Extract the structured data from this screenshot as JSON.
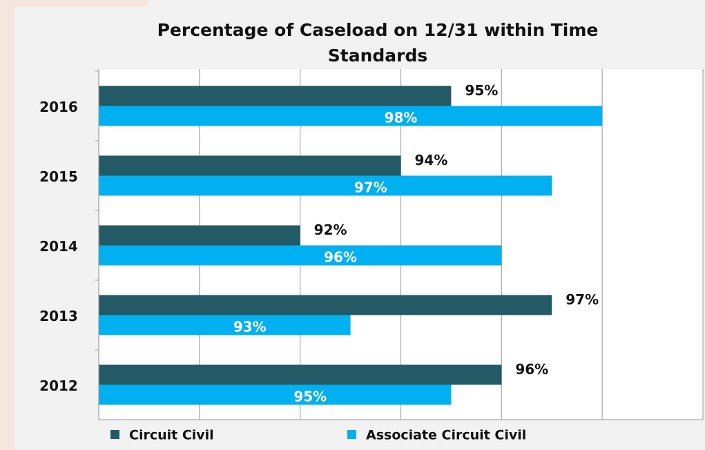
{
  "chart_data": {
    "type": "bar",
    "orientation": "horizontal",
    "title": "Percentage of Caseload on 12/31 within Time Standards",
    "categories": [
      "2016",
      "2015",
      "2014",
      "2013",
      "2012"
    ],
    "series": [
      {
        "name": "Circuit Civil",
        "color": "#245a66",
        "values": [
          95,
          94,
          92,
          97,
          96
        ],
        "value_labels": [
          "95%",
          "94%",
          "92%",
          "97%",
          "96%"
        ]
      },
      {
        "name": "Associate Circuit Civil",
        "color": "#00b0f0",
        "values": [
          98,
          97,
          96,
          93,
          95
        ],
        "value_labels": [
          "98%",
          "97%",
          "96%",
          "93%",
          "95%"
        ]
      }
    ],
    "xlim": [
      88,
      100
    ],
    "xticks": [
      88,
      90,
      92,
      94,
      96,
      98,
      100
    ],
    "grid": true,
    "legend": "bottom"
  }
}
